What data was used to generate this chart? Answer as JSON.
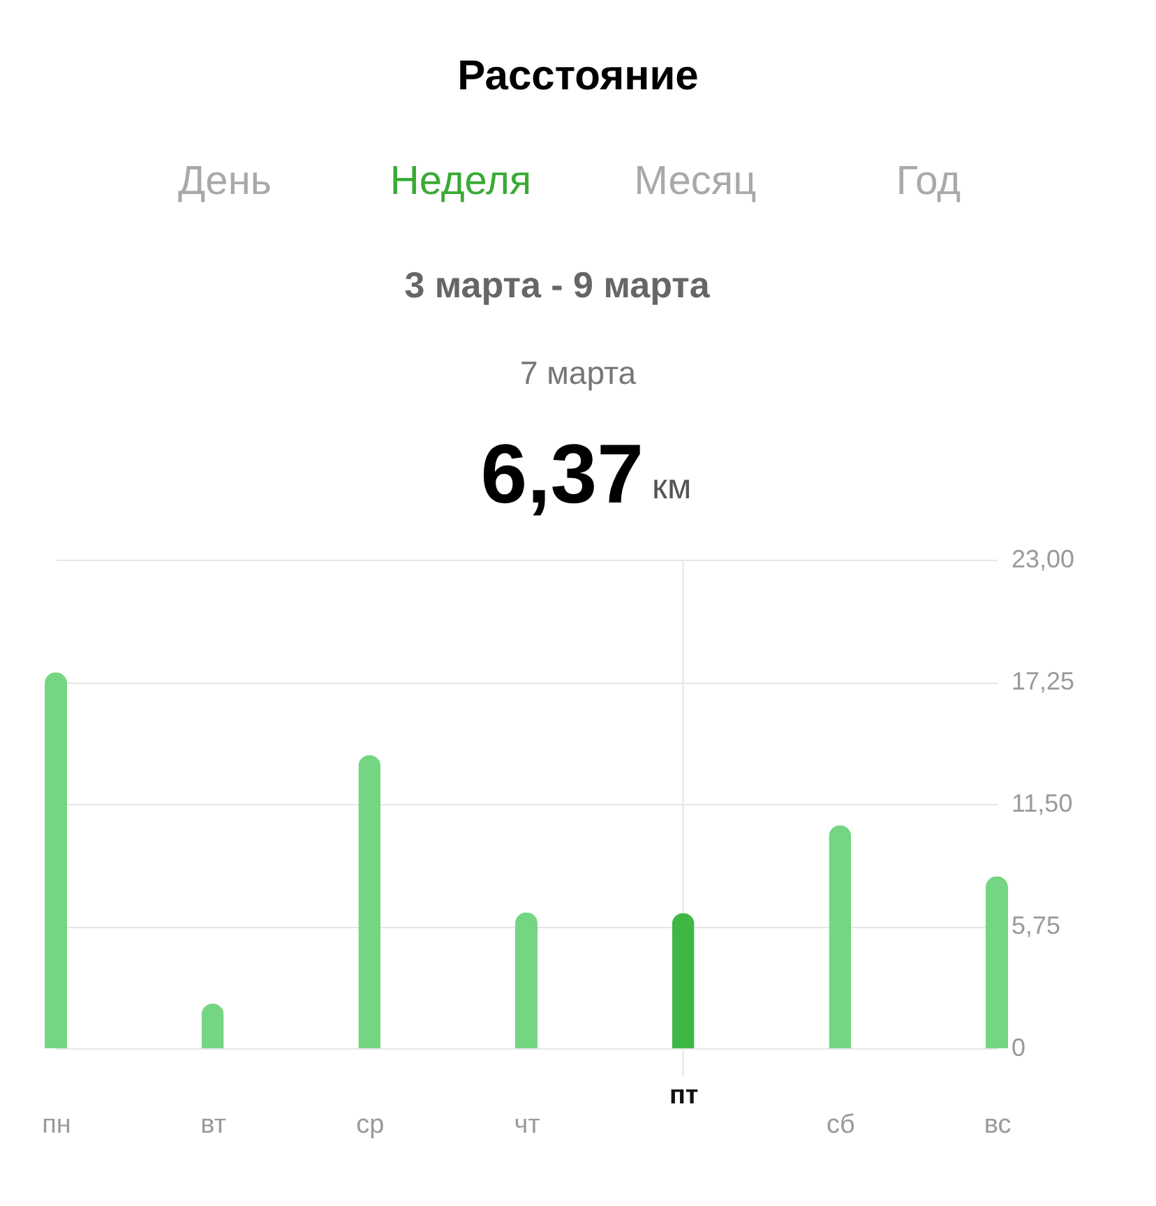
{
  "chart_data": {
    "type": "bar",
    "title": "Расстояние",
    "subtitle": "3 марта - 9 марта",
    "annotations": [
      "День",
      "Неделя",
      "Месяц",
      "Год",
      "7 марта",
      "6,37",
      "км"
    ],
    "categories": [
      "пн",
      "вт",
      "ср",
      "чт",
      "пт",
      "сб",
      "вс"
    ],
    "values": [
      17.7,
      2.1,
      13.8,
      6.4,
      6.37,
      10.5,
      8.1
    ],
    "colors": [
      "#74d682",
      "#74d682",
      "#74d682",
      "#74d682",
      "#3eb843",
      "#74d682",
      "#74d682"
    ],
    "ylim": [
      0,
      23
    ],
    "yticks": [
      0,
      {
        "value": 5.75,
        "label": "5,75"
      },
      {
        "value": 11.5,
        "label": "11,50"
      },
      {
        "value": 17.25,
        "label": "17,25"
      },
      {
        "value": 23,
        "label": "23,00"
      }
    ],
    "ref_lines": [
      {
        "axis": "x",
        "value": "пт",
        "color": "#ebebeb"
      }
    ],
    "grid": "y"
  }
}
